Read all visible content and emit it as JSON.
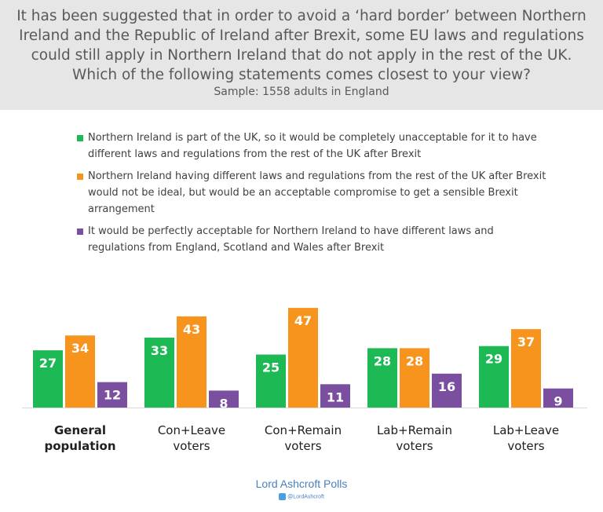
{
  "header": {
    "question": "It has been suggested that in order to avoid a ‘hard border’ between Northern Ireland and the Republic of Ireland after Brexit, some EU laws and regulations could still apply in Northern Ireland that do not apply in the rest of the UK. Which of the following statements comes closest to your view?",
    "sample": "Sample: 1558 adults in England"
  },
  "legend": [
    {
      "label": "Northern Ireland is part of the UK, so it would be completely unacceptable for it to have different laws and regulations from the rest of the UK after Brexit",
      "color": "#1db954"
    },
    {
      "label": "Northern Ireland having different laws and regulations from the rest of the UK after Brexit would not be ideal, but would be an acceptable compromise to get a sensible Brexit arrangement",
      "color": "#f7941d"
    },
    {
      "label": "It would be perfectly acceptable for Northern Ireland to have different laws and regulations from England, Scotland and Wales after Brexit",
      "color": "#7b4fa0"
    }
  ],
  "chart_data": {
    "type": "bar",
    "categories": [
      {
        "line1": "General",
        "line2": "population",
        "bold": true
      },
      {
        "line1": "Con+Leave",
        "line2": "voters",
        "bold": false
      },
      {
        "line1": "Con+Remain",
        "line2": "voters",
        "bold": false
      },
      {
        "line1": "Lab+Remain",
        "line2": "voters",
        "bold": false
      },
      {
        "line1": "Lab+Leave",
        "line2": "voters",
        "bold": false
      }
    ],
    "series": [
      {
        "values": [
          27,
          33,
          25,
          28,
          29
        ],
        "color": "#1db954"
      },
      {
        "values": [
          34,
          43,
          47,
          28,
          37
        ],
        "color": "#f7941d"
      },
      {
        "values": [
          12,
          8,
          11,
          16,
          9
        ],
        "color": "#7b4fa0"
      }
    ],
    "ylim": [
      0,
      47
    ],
    "grid": false,
    "legend_position": "top"
  },
  "footer": {
    "brand": "Lord Ashcroft Polls",
    "handle": "@LordAshcroft"
  }
}
